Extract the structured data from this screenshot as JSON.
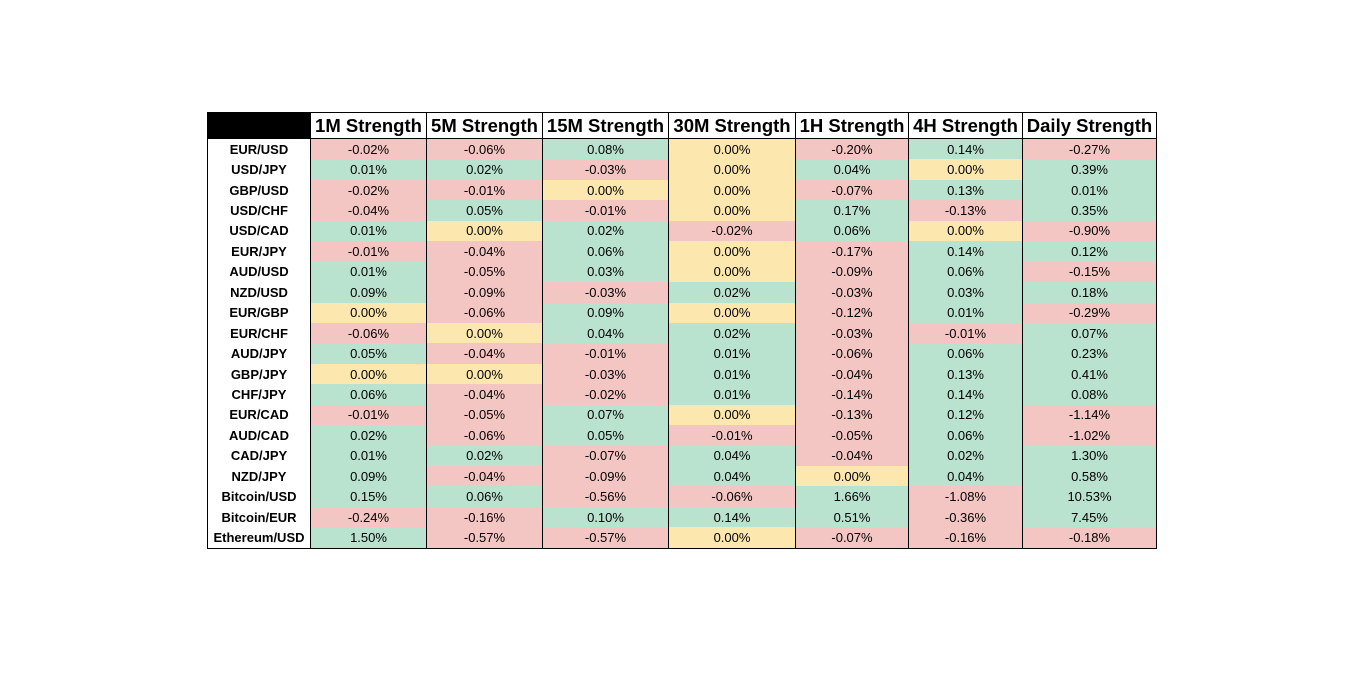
{
  "colors": {
    "positive": "#b9e2cf",
    "negative": "#f4c6c3",
    "neutral": "#fce7ae",
    "header_corner": "#000000"
  },
  "chart_data": {
    "type": "table",
    "columns": [
      "1M Strength",
      "5M Strength",
      "15M Strength",
      "30M Strength",
      "1H Strength",
      "4H Strength",
      "Daily Strength"
    ],
    "rows": [
      {
        "pair": "EUR/USD",
        "values": [
          "-0.02%",
          "-0.06%",
          "0.08%",
          "0.00%",
          "-0.20%",
          "0.14%",
          "-0.27%"
        ]
      },
      {
        "pair": "USD/JPY",
        "values": [
          "0.01%",
          "0.02%",
          "-0.03%",
          "0.00%",
          "0.04%",
          "0.00%",
          "0.39%"
        ]
      },
      {
        "pair": "GBP/USD",
        "values": [
          "-0.02%",
          "-0.01%",
          "0.00%",
          "0.00%",
          "-0.07%",
          "0.13%",
          "0.01%"
        ]
      },
      {
        "pair": "USD/CHF",
        "values": [
          "-0.04%",
          "0.05%",
          "-0.01%",
          "0.00%",
          "0.17%",
          "-0.13%",
          "0.35%"
        ]
      },
      {
        "pair": "USD/CAD",
        "values": [
          "0.01%",
          "0.00%",
          "0.02%",
          "-0.02%",
          "0.06%",
          "0.00%",
          "-0.90%"
        ]
      },
      {
        "pair": "EUR/JPY",
        "values": [
          "-0.01%",
          "-0.04%",
          "0.06%",
          "0.00%",
          "-0.17%",
          "0.14%",
          "0.12%"
        ]
      },
      {
        "pair": "AUD/USD",
        "values": [
          "0.01%",
          "-0.05%",
          "0.03%",
          "0.00%",
          "-0.09%",
          "0.06%",
          "-0.15%"
        ]
      },
      {
        "pair": "NZD/USD",
        "values": [
          "0.09%",
          "-0.09%",
          "-0.03%",
          "0.02%",
          "-0.03%",
          "0.03%",
          "0.18%"
        ]
      },
      {
        "pair": "EUR/GBP",
        "values": [
          "0.00%",
          "-0.06%",
          "0.09%",
          "0.00%",
          "-0.12%",
          "0.01%",
          "-0.29%"
        ]
      },
      {
        "pair": "EUR/CHF",
        "values": [
          "-0.06%",
          "0.00%",
          "0.04%",
          "0.02%",
          "-0.03%",
          "-0.01%",
          "0.07%"
        ]
      },
      {
        "pair": "AUD/JPY",
        "values": [
          "0.05%",
          "-0.04%",
          "-0.01%",
          "0.01%",
          "-0.06%",
          "0.06%",
          "0.23%"
        ]
      },
      {
        "pair": "GBP/JPY",
        "values": [
          "0.00%",
          "0.00%",
          "-0.03%",
          "0.01%",
          "-0.04%",
          "0.13%",
          "0.41%"
        ]
      },
      {
        "pair": "CHF/JPY",
        "values": [
          "0.06%",
          "-0.04%",
          "-0.02%",
          "0.01%",
          "-0.14%",
          "0.14%",
          "0.08%"
        ]
      },
      {
        "pair": "EUR/CAD",
        "values": [
          "-0.01%",
          "-0.05%",
          "0.07%",
          "0.00%",
          "-0.13%",
          "0.12%",
          "-1.14%"
        ]
      },
      {
        "pair": "AUD/CAD",
        "values": [
          "0.02%",
          "-0.06%",
          "0.05%",
          "-0.01%",
          "-0.05%",
          "0.06%",
          "-1.02%"
        ]
      },
      {
        "pair": "CAD/JPY",
        "values": [
          "0.01%",
          "0.02%",
          "-0.07%",
          "0.04%",
          "-0.04%",
          "0.02%",
          "1.30%"
        ]
      },
      {
        "pair": "NZD/JPY",
        "values": [
          "0.09%",
          "-0.04%",
          "-0.09%",
          "0.04%",
          "0.00%",
          "0.04%",
          "0.58%"
        ]
      },
      {
        "pair": "Bitcoin/USD",
        "values": [
          "0.15%",
          "0.06%",
          "-0.56%",
          "-0.06%",
          "1.66%",
          "-1.08%",
          "10.53%"
        ]
      },
      {
        "pair": "Bitcoin/EUR",
        "values": [
          "-0.24%",
          "-0.16%",
          "0.10%",
          "0.14%",
          "0.51%",
          "-0.36%",
          "7.45%"
        ]
      },
      {
        "pair": "Ethereum/USD",
        "values": [
          "1.50%",
          "-0.57%",
          "-0.57%",
          "0.00%",
          "-0.07%",
          "-0.16%",
          "-0.18%"
        ]
      }
    ]
  }
}
